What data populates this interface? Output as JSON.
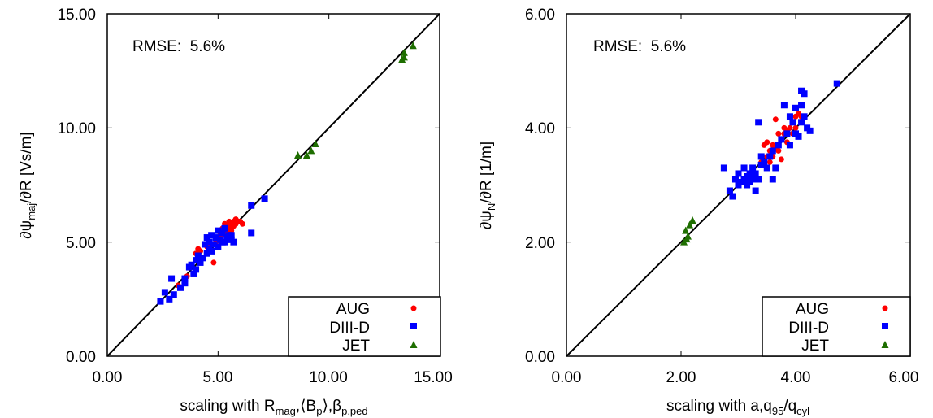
{
  "colors": {
    "AUG": "#ff0000",
    "DIII-D": "#0000ff",
    "JET": "#1e6e00",
    "identity_line": "#000000"
  },
  "chart_data": [
    {
      "type": "scatter",
      "title": "",
      "annotation": "RMSE:  5.6%",
      "xlabel": "scaling with R_mag,⟨B_p⟩,β_p,ped",
      "ylabel": "∂ψ_maj/∂R [Vs/m]",
      "xlim": [
        0,
        15
      ],
      "ylim": [
        0,
        15
      ],
      "xticks": [
        "0.00",
        "5.00",
        "10.00",
        "15.00"
      ],
      "yticks": [
        "0.00",
        "5.00",
        "10.00",
        "15.00"
      ],
      "identity_line": true,
      "legend_position": "bottom-right",
      "series": [
        {
          "name": "AUG",
          "marker": "circle",
          "points": [
            [
              3.2,
              3.1
            ],
            [
              3.6,
              3.5
            ],
            [
              4.0,
              4.5
            ],
            [
              4.1,
              4.7
            ],
            [
              4.2,
              4.6
            ],
            [
              4.5,
              4.8
            ],
            [
              4.8,
              4.1
            ],
            [
              4.9,
              5.0
            ],
            [
              5.0,
              5.2
            ],
            [
              5.1,
              5.4
            ],
            [
              5.2,
              5.6
            ],
            [
              5.3,
              5.5
            ],
            [
              5.3,
              5.8
            ],
            [
              5.4,
              5.7
            ],
            [
              5.5,
              5.6
            ],
            [
              5.5,
              5.9
            ],
            [
              5.6,
              5.8
            ],
            [
              5.6,
              5.5
            ],
            [
              5.7,
              5.9
            ],
            [
              5.7,
              5.7
            ],
            [
              5.8,
              5.8
            ],
            [
              5.8,
              6.0
            ],
            [
              5.9,
              5.9
            ],
            [
              6.0,
              5.9
            ],
            [
              6.1,
              5.8
            ],
            [
              5.4,
              5.4
            ],
            [
              5.2,
              5.3
            ],
            [
              4.6,
              4.9
            ]
          ]
        },
        {
          "name": "DIII-D",
          "marker": "square",
          "points": [
            [
              2.4,
              2.4
            ],
            [
              2.6,
              2.8
            ],
            [
              2.8,
              2.5
            ],
            [
              2.9,
              3.4
            ],
            [
              3.0,
              2.7
            ],
            [
              3.3,
              3.0
            ],
            [
              3.5,
              3.2
            ],
            [
              3.7,
              3.9
            ],
            [
              3.8,
              4.0
            ],
            [
              3.9,
              3.6
            ],
            [
              4.0,
              3.8
            ],
            [
              4.0,
              4.2
            ],
            [
              4.1,
              4.4
            ],
            [
              4.2,
              4.1
            ],
            [
              4.3,
              4.3
            ],
            [
              4.5,
              4.5
            ],
            [
              4.5,
              5.2
            ],
            [
              4.6,
              4.7
            ],
            [
              4.6,
              5.0
            ],
            [
              4.7,
              5.3
            ],
            [
              4.7,
              4.6
            ],
            [
              4.8,
              4.9
            ],
            [
              4.9,
              5.2
            ],
            [
              5.0,
              5.5
            ],
            [
              5.0,
              4.8
            ],
            [
              5.1,
              5.1
            ],
            [
              5.2,
              5.0
            ],
            [
              5.2,
              5.4
            ],
            [
              5.3,
              5.6
            ],
            [
              5.3,
              5.0
            ],
            [
              5.4,
              5.2
            ],
            [
              5.5,
              5.3
            ],
            [
              5.6,
              5.1
            ],
            [
              5.7,
              5.0
            ],
            [
              6.5,
              6.6
            ],
            [
              6.5,
              5.4
            ],
            [
              7.1,
              6.9
            ],
            [
              3.5,
              3.4
            ],
            [
              4.4,
              4.9
            ],
            [
              5.6,
              5.3
            ]
          ]
        },
        {
          "name": "JET",
          "marker": "triangle",
          "points": [
            [
              8.6,
              8.8
            ],
            [
              9.0,
              8.8
            ],
            [
              9.2,
              9.0
            ],
            [
              9.4,
              9.3
            ],
            [
              13.3,
              13.0
            ],
            [
              13.4,
              13.1
            ],
            [
              13.4,
              13.3
            ],
            [
              13.8,
              13.6
            ]
          ]
        }
      ]
    },
    {
      "type": "scatter",
      "title": "",
      "annotation": "RMSE:  5.6%",
      "xlabel": "scaling with a,q_95/q_cyl",
      "ylabel": "∂ψ_N/∂R [1/m]",
      "xlim": [
        0,
        6
      ],
      "ylim": [
        0,
        6
      ],
      "xticks": [
        "0.00",
        "2.00",
        "4.00",
        "6.00"
      ],
      "yticks": [
        "0.00",
        "2.00",
        "4.00",
        "6.00"
      ],
      "identity_line": true,
      "legend_position": "bottom-right",
      "series": [
        {
          "name": "AUG",
          "marker": "circle",
          "points": [
            [
              3.4,
              3.4
            ],
            [
              3.45,
              3.7
            ],
            [
              3.5,
              3.5
            ],
            [
              3.55,
              3.6
            ],
            [
              3.6,
              3.5
            ],
            [
              3.6,
              3.7
            ],
            [
              3.65,
              3.65
            ],
            [
              3.7,
              3.6
            ],
            [
              3.7,
              3.9
            ],
            [
              3.75,
              3.8
            ],
            [
              3.8,
              3.9
            ],
            [
              3.8,
              4.0
            ],
            [
              3.85,
              3.95
            ],
            [
              3.9,
              4.0
            ],
            [
              3.95,
              3.9
            ],
            [
              4.0,
              4.2
            ],
            [
              4.0,
              4.0
            ],
            [
              4.05,
              4.25
            ],
            [
              4.1,
              4.2
            ],
            [
              3.65,
              4.15
            ],
            [
              3.75,
              3.45
            ],
            [
              3.5,
              3.75
            ],
            [
              3.55,
              3.4
            ],
            [
              3.85,
              3.75
            ]
          ]
        },
        {
          "name": "DIII-D",
          "marker": "square",
          "points": [
            [
              2.75,
              3.3
            ],
            [
              2.85,
              2.9
            ],
            [
              2.9,
              2.8
            ],
            [
              2.95,
              3.1
            ],
            [
              3.0,
              3.2
            ],
            [
              3.0,
              3.0
            ],
            [
              3.05,
              3.05
            ],
            [
              3.1,
              3.1
            ],
            [
              3.1,
              3.3
            ],
            [
              3.15,
              3.0
            ],
            [
              3.15,
              3.15
            ],
            [
              3.2,
              3.2
            ],
            [
              3.2,
              3.05
            ],
            [
              3.25,
              3.1
            ],
            [
              3.25,
              3.3
            ],
            [
              3.3,
              3.2
            ],
            [
              3.3,
              2.9
            ],
            [
              3.35,
              3.1
            ],
            [
              3.4,
              3.35
            ],
            [
              3.45,
              3.4
            ],
            [
              3.5,
              3.3
            ],
            [
              3.55,
              3.5
            ],
            [
              3.6,
              3.6
            ],
            [
              3.65,
              3.3
            ],
            [
              3.7,
              3.7
            ],
            [
              3.75,
              3.8
            ],
            [
              3.8,
              4.4
            ],
            [
              3.85,
              3.9
            ],
            [
              3.9,
              4.2
            ],
            [
              3.95,
              4.1
            ],
            [
              4.0,
              3.9
            ],
            [
              4.05,
              3.85
            ],
            [
              4.1,
              4.65
            ],
            [
              4.1,
              4.1
            ],
            [
              4.15,
              4.6
            ],
            [
              4.15,
              4.2
            ],
            [
              4.2,
              4.0
            ],
            [
              4.25,
              3.95
            ],
            [
              3.35,
              4.1
            ],
            [
              4.0,
              4.35
            ],
            [
              4.1,
              4.4
            ],
            [
              4.72,
              4.78
            ],
            [
              3.4,
              3.5
            ],
            [
              3.6,
              3.1
            ],
            [
              3.9,
              3.7
            ]
          ]
        },
        {
          "name": "JET",
          "marker": "triangle",
          "points": [
            [
              2.05,
              2.0
            ],
            [
              2.08,
              2.2
            ],
            [
              2.1,
              2.05
            ],
            [
              2.12,
              2.1
            ],
            [
              2.15,
              2.3
            ],
            [
              2.2,
              2.38
            ]
          ]
        }
      ]
    }
  ],
  "panels": [
    {
      "annotation": "RMSE:  5.6%",
      "ylabel": {
        "pre": "∂ψ",
        "sub": "maj",
        "post": "/∂R [Vs/m]"
      },
      "xlabel": {
        "parts": [
          {
            "t": "scaling with R",
            "sub": false
          },
          {
            "t": "mag",
            "sub": true
          },
          {
            "t": ",⟨B",
            "sub": false
          },
          {
            "t": "p",
            "sub": true
          },
          {
            "t": "⟩,β",
            "sub": false
          },
          {
            "t": "p,ped",
            "sub": true
          }
        ]
      },
      "xticks": [
        "0.00",
        "5.00",
        "10.00",
        "15.00"
      ],
      "yticks": [
        "0.00",
        "5.00",
        "10.00",
        "15.00"
      ],
      "legend": [
        "AUG",
        "DIII-D",
        "JET"
      ]
    },
    {
      "annotation": "RMSE:  5.6%",
      "ylabel": {
        "pre": "∂ψ",
        "sub": "N",
        "post": "/∂R [1/m]"
      },
      "xlabel": {
        "parts": [
          {
            "t": "scaling with a,q",
            "sub": false
          },
          {
            "t": "95",
            "sub": true
          },
          {
            "t": "/q",
            "sub": false
          },
          {
            "t": "cyl",
            "sub": true
          }
        ]
      },
      "xticks": [
        "0.00",
        "2.00",
        "4.00",
        "6.00"
      ],
      "yticks": [
        "0.00",
        "2.00",
        "4.00",
        "6.00"
      ],
      "legend": [
        "AUG",
        "DIII-D",
        "JET"
      ]
    }
  ]
}
